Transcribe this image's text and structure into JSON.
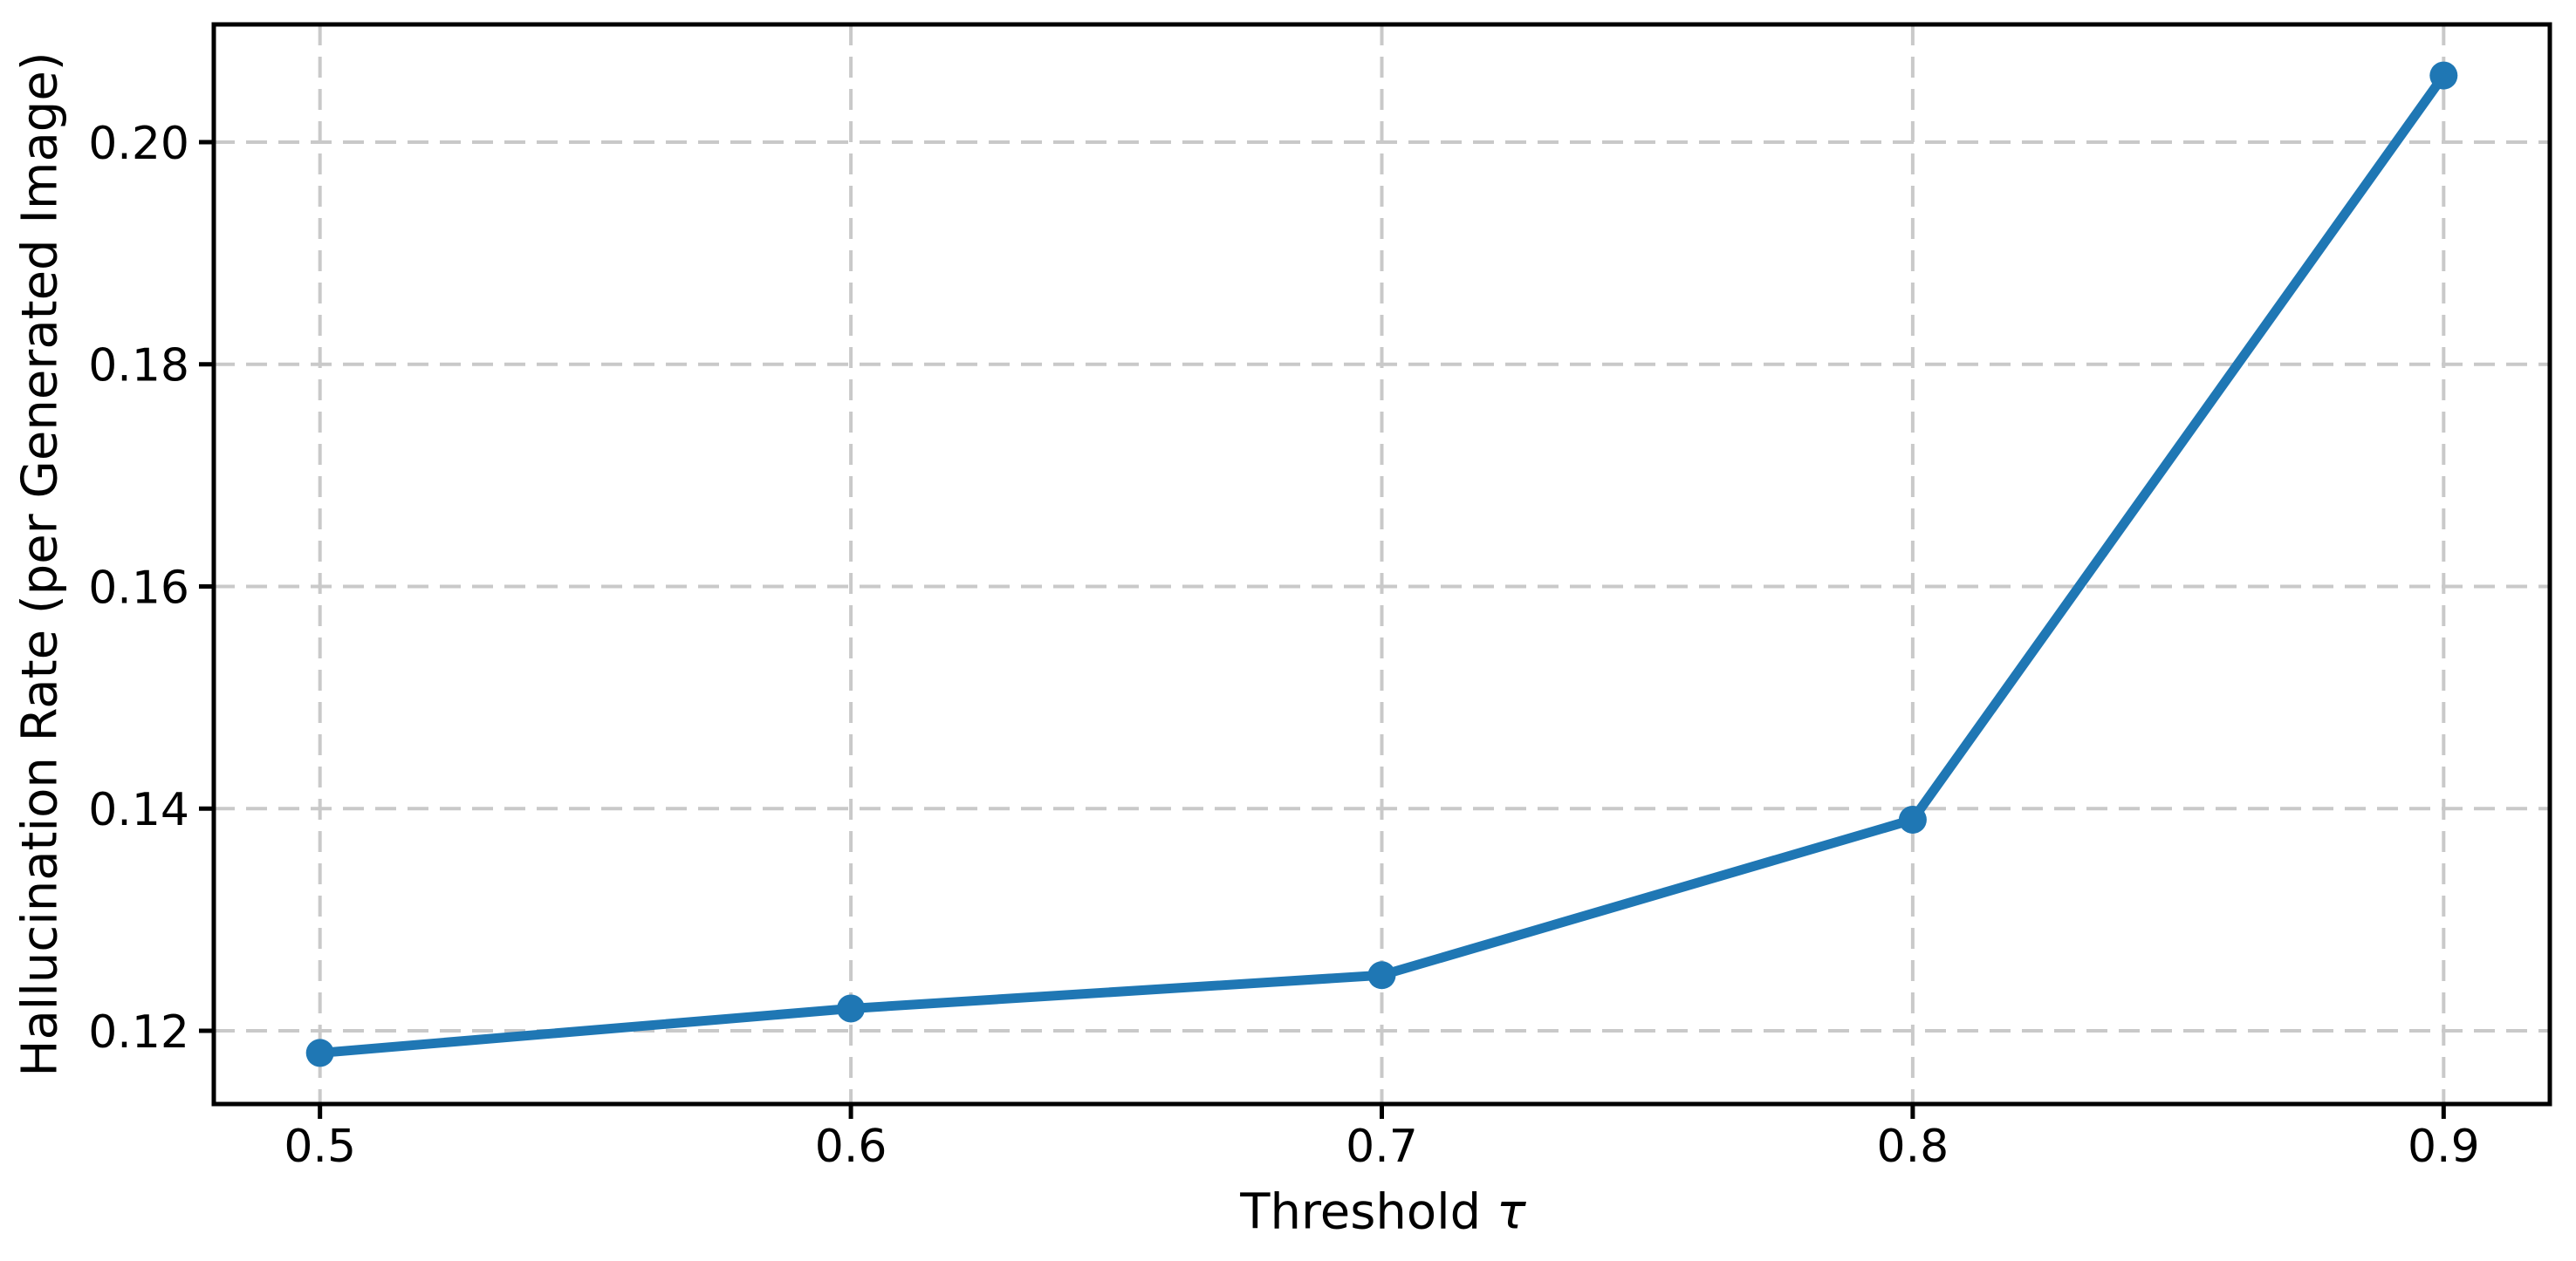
{
  "chart_data": {
    "type": "line",
    "title": "",
    "xlabel": "Threshold τ",
    "xlabel_parts": {
      "text": "Threshold ",
      "symbol": "τ"
    },
    "ylabel": "Hallucination Rate (per Generated Image)",
    "x": [
      0.5,
      0.6,
      0.7,
      0.8,
      0.9
    ],
    "y": [
      0.118,
      0.122,
      0.125,
      0.139,
      0.206
    ],
    "series": [
      {
        "name": "Hallucination Rate",
        "x": [
          0.5,
          0.6,
          0.7,
          0.8,
          0.9
        ],
        "values": [
          0.118,
          0.122,
          0.125,
          0.139,
          0.206
        ]
      }
    ],
    "x_ticks": {
      "values": [
        0.5,
        0.6,
        0.7,
        0.8,
        0.9
      ],
      "labels": [
        "0.5",
        "0.6",
        "0.7",
        "0.8",
        "0.9"
      ]
    },
    "y_ticks": {
      "values": [
        0.12,
        0.14,
        0.16,
        0.18,
        0.2
      ],
      "labels": [
        "0.12",
        "0.14",
        "0.16",
        "0.18",
        "0.20"
      ]
    },
    "xlim": [
      0.48,
      0.92
    ],
    "ylim": [
      0.1134,
      0.2106
    ],
    "grid": {
      "enabled": true,
      "style": "dashed",
      "color": "#c9c9c9"
    },
    "legend": {
      "visible": false
    },
    "colors": {
      "line": "#1f77b4",
      "marker": "#1f77b4",
      "spine": "#000000",
      "tick": "#000000",
      "text": "#000000",
      "background": "#ffffff"
    },
    "marker": "circle"
  }
}
